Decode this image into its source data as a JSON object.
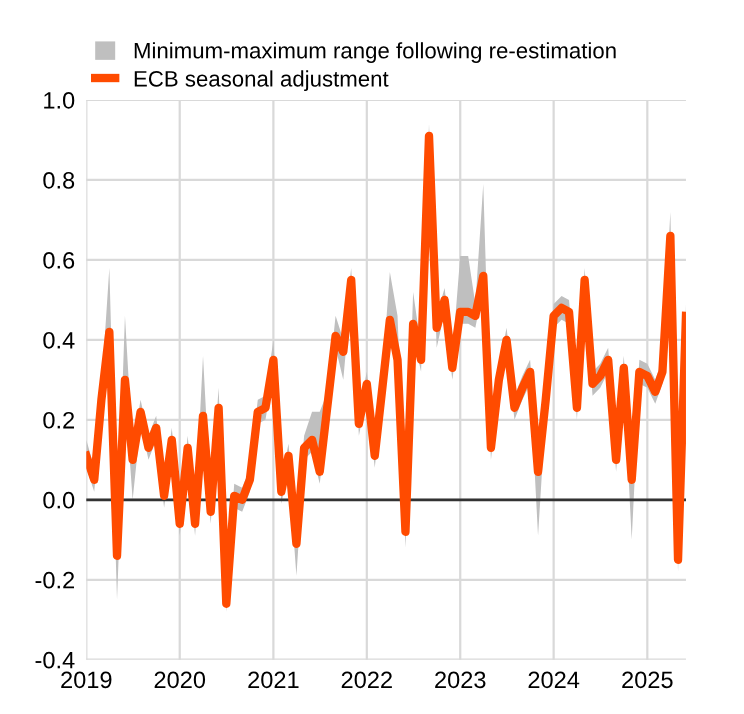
{
  "chart_data": {
    "type": "line",
    "x": [
      "2019-01",
      "2019-02",
      "2019-03",
      "2019-04",
      "2019-05",
      "2019-06",
      "2019-07",
      "2019-08",
      "2019-09",
      "2019-10",
      "2019-11",
      "2019-12",
      "2020-01",
      "2020-02",
      "2020-03",
      "2020-04",
      "2020-05",
      "2020-06",
      "2020-07",
      "2020-08",
      "2020-09",
      "2020-10",
      "2020-11",
      "2020-12",
      "2021-01",
      "2021-02",
      "2021-03",
      "2021-04",
      "2021-05",
      "2021-06",
      "2021-07",
      "2021-08",
      "2021-09",
      "2021-10",
      "2021-11",
      "2021-12",
      "2022-01",
      "2022-02",
      "2022-03",
      "2022-04",
      "2022-05",
      "2022-06",
      "2022-07",
      "2022-08",
      "2022-09",
      "2022-10",
      "2022-11",
      "2022-12",
      "2023-01",
      "2023-02",
      "2023-03",
      "2023-04",
      "2023-05",
      "2023-06",
      "2023-07",
      "2023-08",
      "2023-09",
      "2023-10",
      "2023-11",
      "2023-12",
      "2024-01",
      "2024-02",
      "2024-03",
      "2024-04",
      "2024-05",
      "2024-06",
      "2024-07",
      "2024-08",
      "2024-09",
      "2024-10",
      "2024-11",
      "2024-12",
      "2025-01",
      "2025-02",
      "2025-03",
      "2025-04",
      "2025-05",
      "2025-06"
    ],
    "series": [
      {
        "type": "line",
        "name": "ECB seasonal adjustment",
        "color": "#ff4b00",
        "values": [
          0.11,
          0.05,
          0.25,
          0.42,
          -0.14,
          0.3,
          0.1,
          0.22,
          0.13,
          0.18,
          0.01,
          0.15,
          -0.06,
          0.13,
          -0.06,
          0.21,
          -0.03,
          0.23,
          -0.26,
          0.01,
          0.0,
          0.05,
          0.22,
          0.23,
          0.35,
          0.02,
          0.11,
          -0.11,
          0.13,
          0.15,
          0.07,
          0.24,
          0.41,
          0.37,
          0.55,
          0.19,
          0.29,
          0.11,
          0.27,
          0.45,
          0.35,
          -0.08,
          0.44,
          0.35,
          0.91,
          0.43,
          0.5,
          0.33,
          0.47,
          0.47,
          0.46,
          0.56,
          0.13,
          0.3,
          0.4,
          0.23,
          0.28,
          0.32,
          0.07,
          0.25,
          0.46,
          0.48,
          0.47,
          0.23,
          0.55,
          0.29,
          0.31,
          0.35,
          0.1,
          0.33,
          0.05,
          0.32,
          0.31,
          0.27,
          0.32,
          0.66,
          -0.15,
          0.46
        ],
        "lower": [
          0.08,
          0.02,
          0.22,
          0.39,
          -0.25,
          0.27,
          0.0,
          0.19,
          0.1,
          0.15,
          -0.02,
          0.12,
          -0.09,
          0.1,
          -0.09,
          0.18,
          -0.06,
          0.2,
          -0.28,
          -0.02,
          -0.03,
          0.02,
          0.19,
          0.2,
          0.32,
          -0.01,
          0.08,
          -0.19,
          0.1,
          0.12,
          0.04,
          0.21,
          0.38,
          0.3,
          0.52,
          0.16,
          0.26,
          0.08,
          0.24,
          0.42,
          0.32,
          -0.12,
          0.41,
          0.32,
          0.88,
          0.38,
          0.47,
          0.3,
          0.44,
          0.44,
          0.43,
          0.53,
          0.1,
          0.27,
          0.37,
          0.2,
          0.25,
          0.29,
          -0.09,
          0.22,
          0.43,
          0.45,
          0.44,
          0.2,
          0.52,
          0.26,
          0.28,
          0.32,
          0.07,
          0.3,
          -0.1,
          0.29,
          0.28,
          0.24,
          0.29,
          0.63,
          -0.18,
          0.43
        ],
        "upper": [
          0.15,
          0.08,
          0.28,
          0.58,
          -0.11,
          0.46,
          0.13,
          0.25,
          0.16,
          0.21,
          0.04,
          0.18,
          -0.03,
          0.16,
          -0.03,
          0.36,
          0.0,
          0.28,
          -0.23,
          0.04,
          0.03,
          0.08,
          0.25,
          0.26,
          0.4,
          0.05,
          0.14,
          -0.08,
          0.16,
          0.22,
          0.22,
          0.27,
          0.46,
          0.4,
          0.58,
          0.22,
          0.32,
          0.14,
          0.3,
          0.57,
          0.46,
          -0.05,
          0.52,
          0.38,
          0.94,
          0.46,
          0.53,
          0.36,
          0.61,
          0.61,
          0.49,
          0.79,
          0.16,
          0.33,
          0.43,
          0.26,
          0.31,
          0.35,
          0.1,
          0.28,
          0.49,
          0.51,
          0.5,
          0.26,
          0.58,
          0.32,
          0.34,
          0.38,
          0.13,
          0.36,
          0.08,
          0.35,
          0.34,
          0.3,
          0.35,
          0.72,
          -0.12,
          0.49
        ]
      }
    ],
    "annotations": [
      "Minimum-maximum range following re-estimation"
    ],
    "xlim": [
      "2019-01",
      "2025-06"
    ],
    "xticks": [
      "2019",
      "2020",
      "2021",
      "2022",
      "2023",
      "2024",
      "2025"
    ],
    "ylim": [
      -0.4,
      1.0
    ],
    "yticks": [
      -0.4,
      -0.2,
      {
        "value": 0,
        "label": "0.0"
      },
      0.2,
      0.4,
      0.6,
      0.8,
      {
        "value": 1,
        "label": "1.0"
      }
    ],
    "ref_lines": [
      {
        "axis": "y",
        "value": 0,
        "color": "#333333"
      }
    ],
    "grid": true,
    "legend": "top left"
  }
}
